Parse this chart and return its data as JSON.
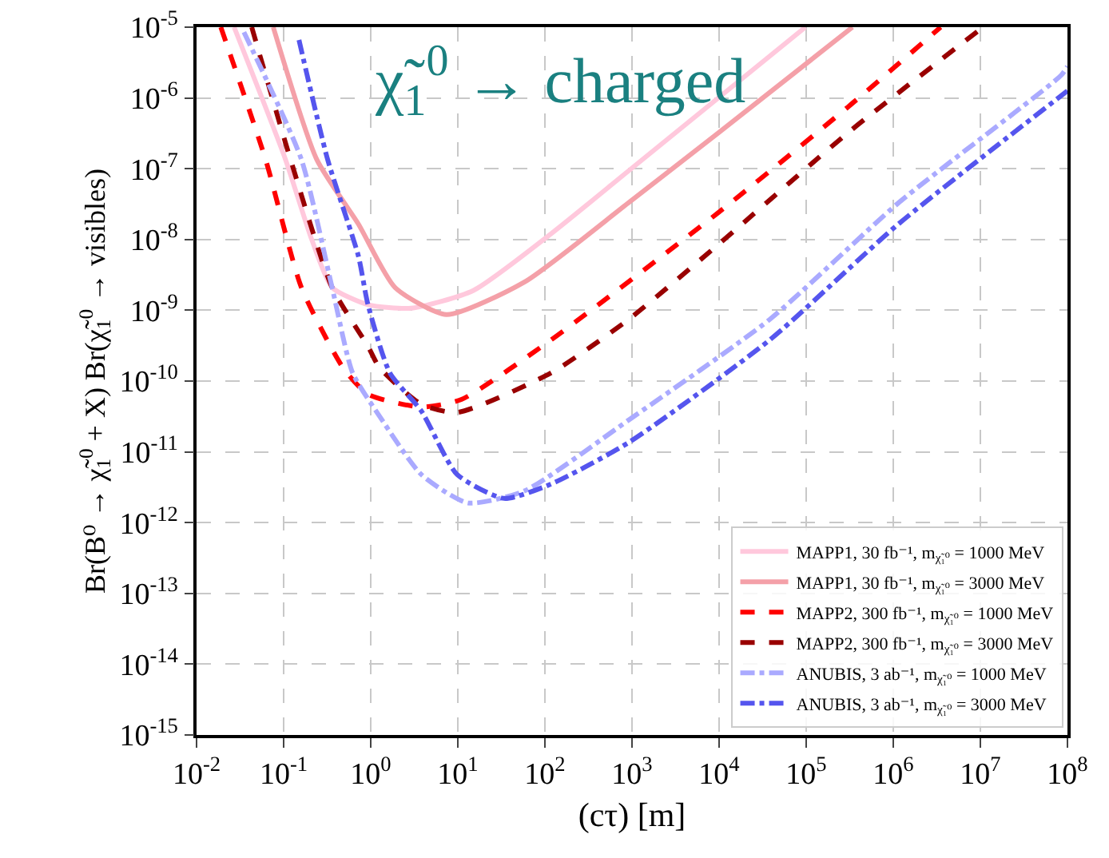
{
  "chart_data": {
    "type": "line",
    "xlabel": "(cτ) [m]",
    "ylabel": "Br(B⁰ → χ̃$_{1}$$^{0}$ + X) Br(χ̃$_{1}$$^{0}$ → visibles)",
    "annotations": [
      "χ̃$_{1}$$^{0}$ → charged"
    ],
    "log": "xy",
    "grid": true,
    "legend": "bottom right",
    "xlim": [
      0.01,
      100000000
    ],
    "ylim": [
      1e-15,
      1e-05
    ],
    "xticks": [
      {
        "value": 0.01,
        "label": "10$^{-2}$"
      },
      {
        "value": 0.1,
        "label": "10$^{-1}$"
      },
      {
        "value": 1,
        "label": "10$^{0}$"
      },
      {
        "value": 10,
        "label": "10$^{1}$"
      },
      {
        "value": 100,
        "label": "10$^{2}$"
      },
      {
        "value": 1000,
        "label": "10$^{3}$"
      },
      {
        "value": 10000,
        "label": "10$^{4}$"
      },
      {
        "value": 100000,
        "label": "10$^{5}$"
      },
      {
        "value": 1000000,
        "label": "10$^{6}$"
      },
      {
        "value": 10000000,
        "label": "10$^{7}$"
      },
      {
        "value": 100000000,
        "label": "10$^{8}$"
      }
    ],
    "yticks": [
      {
        "value": 1e-15,
        "label": "10$^{-15}$"
      },
      {
        "value": 1e-14,
        "label": "10$^{-14}$"
      },
      {
        "value": 1e-13,
        "label": "10$^{-13}$"
      },
      {
        "value": 1e-12,
        "label": "10$^{-12}$"
      },
      {
        "value": 1e-11,
        "label": "10$^{-11}$"
      },
      {
        "value": 1e-10,
        "label": "10$^{-10}$"
      },
      {
        "value": 1e-09,
        "label": "10$^{-9}$"
      },
      {
        "value": 1e-08,
        "label": "10$^{-8}$"
      },
      {
        "value": 1e-07,
        "label": "10$^{-7}$"
      },
      {
        "value": 1e-06,
        "label": "10$^{-6}$"
      },
      {
        "value": 1e-05,
        "label": "10$^{-5}$"
      }
    ],
    "series": [
      {
        "name": "MAPP1, 30 fb⁻¹, m$_{χ̃₁⁰}$ = 1000 MeV",
        "color": "#ffc8dc",
        "line_style": "solid",
        "x": [
          0.027,
          0.105,
          0.21,
          0.36,
          0.93,
          2.9,
          15,
          117,
          910,
          98000
        ],
        "values": [
          1e-05,
          1.35e-07,
          1e-08,
          2.1e-09,
          1.2e-09,
          1.07e-09,
          1.9e-09,
          1.2e-08,
          9.3e-08,
          1e-05
        ]
      },
      {
        "name": "MAPP1, 30 fb⁻¹, m$_{χ̃₁⁰}$ = 3000 MeV",
        "color": "#f4a0a8",
        "line_style": "solid",
        "x": [
          0.076,
          0.24,
          0.72,
          1.9,
          7.4,
          58,
          910,
          9800,
          340000
        ],
        "values": [
          1e-05,
          1.35e-07,
          1.66e-08,
          2.1e-09,
          8.7e-10,
          2.5e-09,
          3.3e-08,
          3.2e-07,
          1e-05
        ]
      },
      {
        "name": "MAPP2, 300 fb⁻¹, m$_{χ̃₁⁰}$ = 1000 MeV",
        "color": "#ff0000",
        "line_style": "dashed",
        "x": [
          0.019,
          0.062,
          0.16,
          0.48,
          0.93,
          3.8,
          11,
          117,
          9800,
          300000,
          3500000
        ],
        "values": [
          1e-05,
          1.35e-07,
          2.1e-09,
          1.55e-10,
          6.5e-11,
          4.3e-11,
          5.5e-11,
          3.8e-10,
          2.4e-08,
          7.4e-07,
          1e-05
        ]
      },
      {
        "name": "MAPP2, 300 fb⁻¹, m$_{χ̃₁⁰}$ = 3000 MeV",
        "color": "#990000",
        "line_style": "dashed",
        "x": [
          0.043,
          0.12,
          0.36,
          0.93,
          1.26,
          3.8,
          9.8,
          117,
          910,
          9800,
          300000,
          10700000
        ],
        "values": [
          1e-05,
          1.35e-07,
          2.1e-09,
          3.1e-10,
          1.55e-10,
          4.7e-11,
          3.6e-11,
          1.3e-10,
          7.4e-10,
          8.5e-09,
          3.2e-07,
          1e-05
        ]
      },
      {
        "name": "ANUBIS, 3 ab⁻¹, m$_{χ̃₁⁰}$ = 1000 MeV",
        "color": "#aaaaff",
        "line_style": "dashdot",
        "x": [
          0.035,
          0.16,
          0.36,
          0.62,
          1.26,
          3.8,
          13,
          58,
          910,
          38000,
          1150000,
          85000000,
          100000000
        ],
        "values": [
          8.5e-06,
          1.35e-07,
          2.1e-09,
          1.3e-10,
          3.2e-11,
          4.8e-12,
          1.9e-12,
          2.8e-12,
          2.8e-11,
          7.4e-10,
          3.3e-08,
          2.1e-06,
          2.8e-06
        ]
      },
      {
        "name": "ANUBIS, 3 ab⁻¹, m$_{χ̃₁⁰}$ = 3000 MeV",
        "color": "#5555ee",
        "line_style": "dashdot",
        "x": [
          0.15,
          0.32,
          0.72,
          0.93,
          1.66,
          3.8,
          9.8,
          34,
          117,
          910,
          38000,
          1150000,
          100000000
        ],
        "values": [
          6.6e-06,
          1.35e-07,
          5.9e-09,
          1.2e-09,
          1.3e-10,
          3.8e-11,
          4.8e-12,
          2.2e-12,
          3.5e-12,
          1.35e-11,
          3.8e-10,
          1.66e-08,
          1.26e-06
        ]
      }
    ]
  }
}
